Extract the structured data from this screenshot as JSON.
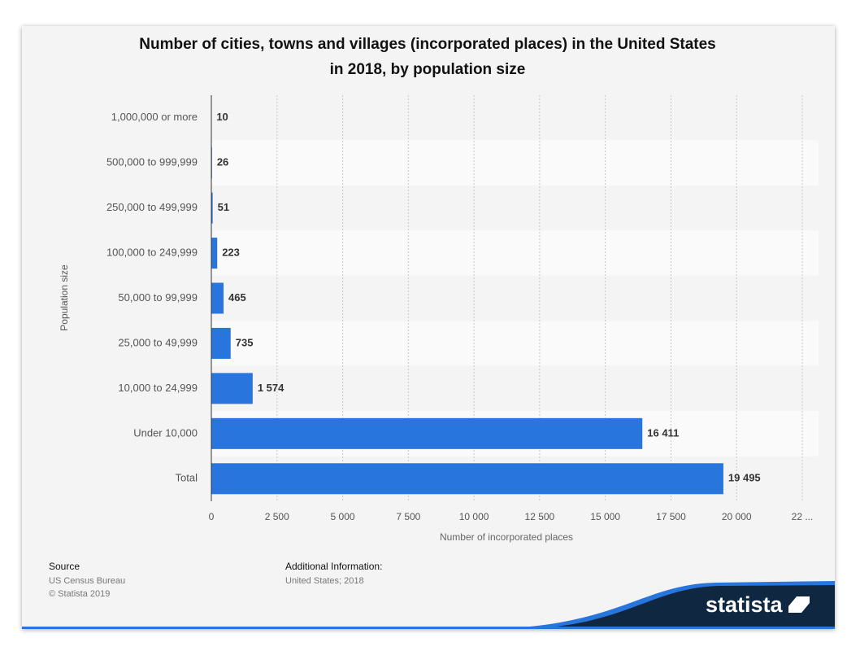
{
  "chart_data": {
    "type": "bar",
    "orientation": "horizontal",
    "title": "Number of cities, towns and villages (incorporated places) in the United States",
    "subtitle": "in 2018, by population size",
    "categories": [
      "1,000,000 or more",
      "500,000 to 999,999",
      "250,000 to 499,999",
      "100,000 to 249,999",
      "50,000 to 99,999",
      "25,000 to 49,999",
      "10,000 to 24,999",
      "Under 10,000",
      "Total"
    ],
    "values": [
      10,
      26,
      51,
      223,
      465,
      735,
      1574,
      16411,
      19495
    ],
    "value_labels": [
      "10",
      "26",
      "51",
      "223",
      "465",
      "735",
      "1 574",
      "16 411",
      "19 495"
    ],
    "color": "#2876dd",
    "xlim": [
      0,
      22500
    ],
    "xticks": [
      0,
      {
        "value": 2500,
        "label": "2 500"
      },
      {
        "value": 5000,
        "label": "5 000"
      },
      {
        "value": 7500,
        "label": "7 500"
      },
      {
        "value": 10000,
        "label": "10 000"
      },
      {
        "value": 12500,
        "label": "12 500"
      },
      {
        "value": 15000,
        "label": "15 000"
      },
      {
        "value": 17500,
        "label": "17 500"
      },
      {
        "value": 20000,
        "label": "20 000"
      },
      {
        "value": 22500,
        "label": "22 ..."
      }
    ],
    "xlabel": "Number of incorporated places",
    "ylabel": "Population size",
    "grid": true
  },
  "footer": {
    "source_title": "Source",
    "source": "US Census Bureau",
    "copyright": "© Statista 2019",
    "info_title": "Additional Information:",
    "info": "United States; 2018",
    "logo": "statista"
  }
}
